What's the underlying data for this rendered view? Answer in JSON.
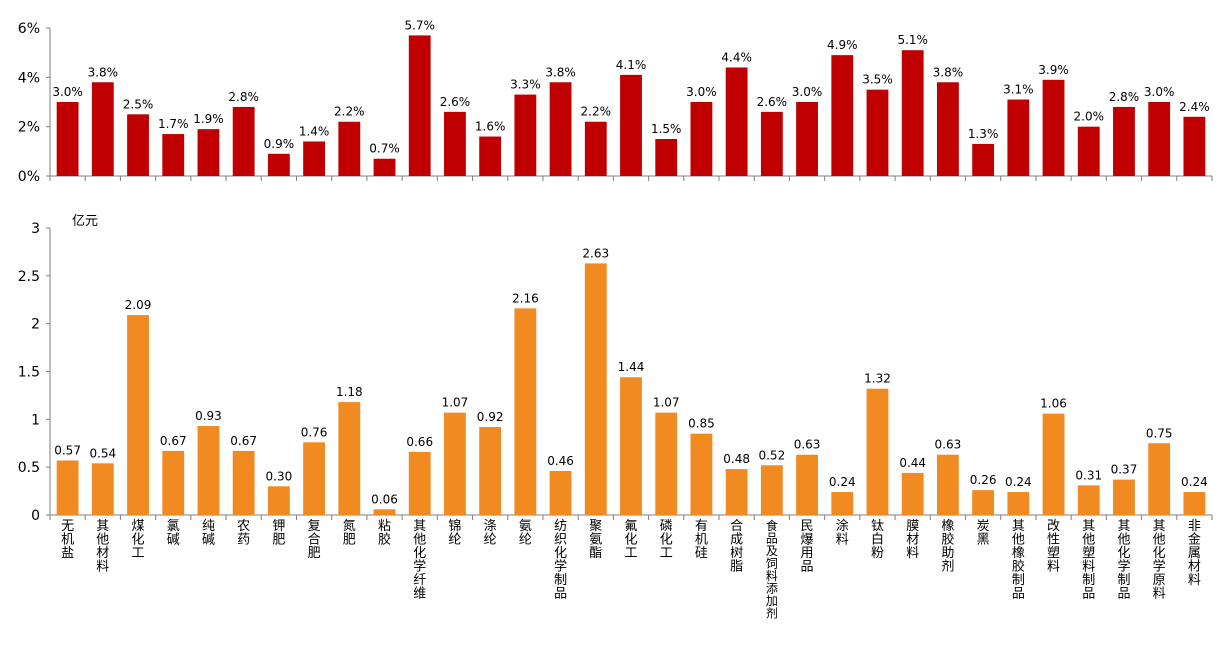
{
  "chart_data": [
    {
      "type": "bar",
      "title": "",
      "xlabel": "",
      "ylabel": "",
      "ylim": [
        0,
        6
      ],
      "yticks": [
        "0%",
        "2%",
        "4%",
        "6%"
      ],
      "grid": false,
      "color": "#c00000",
      "categories": [
        "无机盐",
        "其他材料",
        "煤化工",
        "氯碱",
        "纯碱",
        "农药",
        "钾肥",
        "复合肥",
        "氮肥",
        "粘胶",
        "其他化学纤维",
        "锦纶",
        "涤纶",
        "氨纶",
        "纺织化学制品",
        "聚氨酯",
        "氟化工",
        "磷化工",
        "有机硅",
        "合成树脂",
        "食品及饲料添加剂",
        "民爆用品",
        "涂料",
        "钛白粉",
        "膜材料",
        "橡胶助剂",
        "炭黑",
        "其他橡胶制品",
        "改性塑料",
        "其他塑料制品",
        "其他化学制品",
        "其他化学原料",
        "非金属材料"
      ],
      "values": [
        3.0,
        3.8,
        2.5,
        1.7,
        1.9,
        2.8,
        0.9,
        1.4,
        2.2,
        0.7,
        5.7,
        2.6,
        1.6,
        3.3,
        3.8,
        2.2,
        4.1,
        1.5,
        3.0,
        4.4,
        2.6,
        3.0,
        4.9,
        3.5,
        5.1,
        3.8,
        1.3,
        3.1,
        3.9,
        2.0,
        2.8,
        3.0,
        2.4
      ],
      "labels": [
        "3.0%",
        "3.8%",
        "2.5%",
        "1.7%",
        "1.9%",
        "2.8%",
        "0.9%",
        "1.4%",
        "2.2%",
        "0.7%",
        "5.7%",
        "2.6%",
        "1.6%",
        "3.3%",
        "3.8%",
        "2.2%",
        "4.1%",
        "1.5%",
        "3.0%",
        "4.4%",
        "2.6%",
        "3.0%",
        "4.9%",
        "3.5%",
        "5.1%",
        "3.8%",
        "1.3%",
        "3.1%",
        "3.9%",
        "2.0%",
        "2.8%",
        "3.0%",
        "2.4%"
      ]
    },
    {
      "type": "bar",
      "title": "",
      "xlabel": "",
      "ylabel": "亿元",
      "ylim": [
        0,
        3
      ],
      "yticks": [
        "0",
        "0.5",
        "1",
        "1.5",
        "2",
        "2.5",
        "3"
      ],
      "grid": false,
      "color": "#f28a22",
      "categories": [
        "无机盐",
        "其他材料",
        "煤化工",
        "氯碱",
        "纯碱",
        "农药",
        "钾肥",
        "复合肥",
        "氮肥",
        "粘胶",
        "其他化学纤维",
        "锦纶",
        "涤纶",
        "氨纶",
        "纺织化学制品",
        "聚氨酯",
        "氟化工",
        "磷化工",
        "有机硅",
        "合成树脂",
        "食品及饲料添加剂",
        "民爆用品",
        "涂料",
        "钛白粉",
        "膜材料",
        "橡胶助剂",
        "炭黑",
        "其他橡胶制品",
        "改性塑料",
        "其他塑料制品",
        "其他化学制品",
        "其他化学原料",
        "非金属材料"
      ],
      "values": [
        0.57,
        0.54,
        2.09,
        0.67,
        0.93,
        0.67,
        0.3,
        0.76,
        1.18,
        0.06,
        0.66,
        1.07,
        0.92,
        2.16,
        0.46,
        2.63,
        1.44,
        1.07,
        0.85,
        0.48,
        0.52,
        0.63,
        0.24,
        1.32,
        0.44,
        0.63,
        0.26,
        0.24,
        1.06,
        0.31,
        0.37,
        0.75,
        0.24
      ],
      "labels": [
        "0.57",
        "0.54",
        "2.09",
        "0.67",
        "0.93",
        "0.67",
        "0.30",
        "0.76",
        "1.18",
        "0.06",
        "0.66",
        "1.07",
        "0.92",
        "2.16",
        "0.46",
        "2.63",
        "1.44",
        "1.07",
        "0.85",
        "0.48",
        "0.52",
        "0.63",
        "0.24",
        "1.32",
        "0.44",
        "0.63",
        "0.26",
        "0.24",
        "1.06",
        "0.31",
        "0.37",
        "0.75",
        "0.24"
      ]
    }
  ]
}
